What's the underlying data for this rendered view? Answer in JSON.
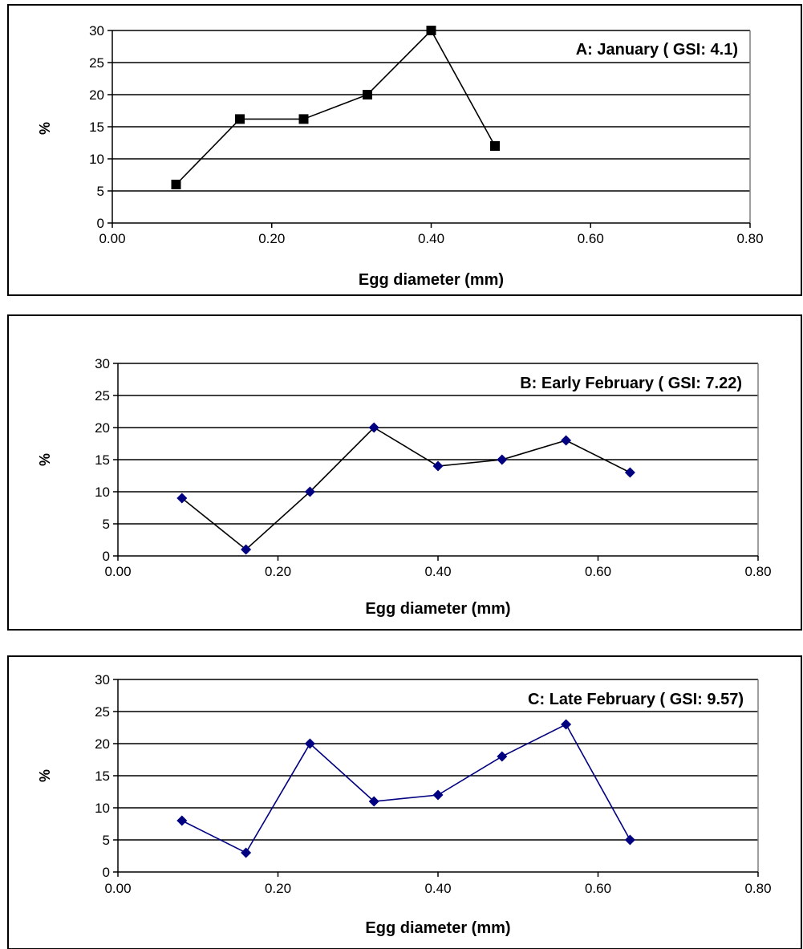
{
  "chart_data": [
    {
      "type": "line",
      "annotation": "A: January  ( GSI: 4.1)",
      "xlabel": "Egg diameter (mm)",
      "ylabel": "%",
      "xlim": [
        0,
        0.8
      ],
      "ylim": [
        0,
        30
      ],
      "xticks": [
        "0.00",
        "0.20",
        "0.40",
        "0.60",
        "0.80"
      ],
      "yticks": [
        "0",
        "5",
        "10",
        "15",
        "20",
        "25",
        "30"
      ],
      "grid": true,
      "marker": "square",
      "color": "#000000",
      "series": [
        {
          "x": [
            0.08,
            0.16,
            0.24,
            0.32,
            0.4,
            0.48
          ],
          "y": [
            6,
            16.2,
            16.2,
            20,
            30,
            12
          ]
        }
      ]
    },
    {
      "type": "line",
      "annotation": "B: Early February ( GSI: 7.22)",
      "xlabel": "Egg diameter (mm)",
      "ylabel": "%",
      "xlim": [
        0,
        0.8
      ],
      "ylim": [
        0,
        30
      ],
      "xticks": [
        "0.00",
        "0.20",
        "0.40",
        "0.60",
        "0.80"
      ],
      "yticks": [
        "0",
        "5",
        "10",
        "15",
        "20",
        "25",
        "30"
      ],
      "grid": true,
      "marker": "diamond",
      "color": "#000080",
      "line_color": "#000000",
      "series": [
        {
          "x": [
            0.08,
            0.16,
            0.24,
            0.32,
            0.4,
            0.48,
            0.56,
            0.64
          ],
          "y": [
            9,
            1,
            10,
            20,
            14,
            15,
            18,
            13
          ]
        }
      ]
    },
    {
      "type": "line",
      "annotation": "C: Late February  ( GSI: 9.57)",
      "xlabel": "Egg diameter (mm)",
      "ylabel": "%",
      "xlim": [
        0,
        0.8
      ],
      "ylim": [
        0,
        30
      ],
      "xticks": [
        "0.00",
        "0.20",
        "0.40",
        "0.60",
        "0.80"
      ],
      "yticks": [
        "0",
        "5",
        "10",
        "15",
        "20",
        "25",
        "30"
      ],
      "grid": true,
      "marker": "diamond",
      "color": "#000080",
      "line_color": "#000080",
      "series": [
        {
          "x": [
            0.08,
            0.16,
            0.24,
            0.32,
            0.4,
            0.48,
            0.56,
            0.64
          ],
          "y": [
            8,
            3,
            20,
            11,
            12,
            18,
            23,
            5
          ]
        }
      ]
    }
  ]
}
